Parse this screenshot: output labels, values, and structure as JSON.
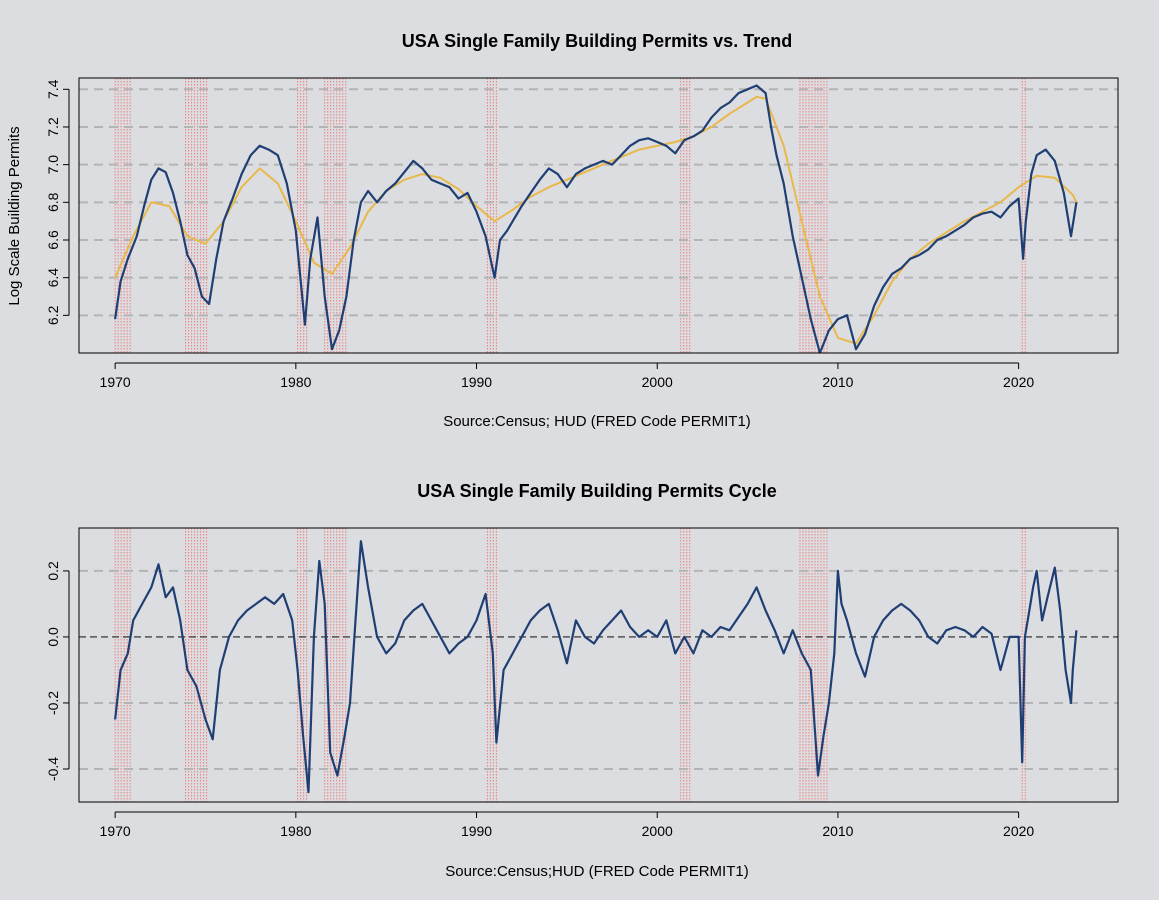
{
  "colors": {
    "background": "#dcdde0",
    "series": "#1f3f74",
    "trend": "#e9b84a",
    "recession": "#ec7f7f",
    "grid": "#b4b4b4",
    "zero_line": "#222222"
  },
  "chart_data": [
    {
      "type": "line",
      "title": "USA Single Family Building Permits vs. Trend",
      "xlabel": "Source:Census; HUD (FRED Code PERMIT1)",
      "ylabel": "Log Scale Building Permits",
      "xlim": [
        1968,
        2025.5
      ],
      "ylim": [
        6.0,
        7.46
      ],
      "x_ticks": [
        1970,
        1980,
        1990,
        2000,
        2010,
        2020
      ],
      "y_ticks": [
        6.2,
        6.4,
        6.6,
        6.8,
        7.0,
        7.2,
        7.4
      ],
      "y_gridlines": [
        6.2,
        6.4,
        6.6,
        6.8,
        7.0,
        7.2,
        7.4
      ],
      "grid": "dashed horizontal",
      "recessions": [
        [
          1970.0,
          1970.9
        ],
        [
          1973.9,
          1975.2
        ],
        [
          1980.1,
          1980.6
        ],
        [
          1981.6,
          1982.9
        ],
        [
          1990.6,
          1991.2
        ],
        [
          2001.3,
          2001.9
        ],
        [
          2007.9,
          2009.5
        ],
        [
          2020.2,
          2020.4
        ]
      ],
      "series": [
        {
          "x": [
            1970.0,
            1970.3,
            1970.7,
            1971.2,
            1971.6,
            1972.0,
            1972.4,
            1972.8,
            1973.2,
            1973.6,
            1974.0,
            1974.4,
            1974.8,
            1975.2,
            1975.6,
            1976.0,
            1976.5,
            1977.0,
            1977.5,
            1978.0,
            1978.5,
            1979.0,
            1979.5,
            1980.0,
            1980.3,
            1980.5,
            1980.8,
            1981.2,
            1981.6,
            1982.0,
            1982.4,
            1982.8,
            1983.2,
            1983.6,
            1984.0,
            1984.5,
            1985.0,
            1985.5,
            1986.0,
            1986.5,
            1987.0,
            1987.5,
            1988.0,
            1988.5,
            1989.0,
            1989.5,
            1990.0,
            1990.5,
            1991.0,
            1991.3,
            1991.7,
            1992.0,
            1992.5,
            1993.0,
            1993.5,
            1994.0,
            1994.5,
            1995.0,
            1995.5,
            1996.0,
            1996.5,
            1997.0,
            1997.5,
            1998.0,
            1998.5,
            1999.0,
            1999.5,
            2000.0,
            2000.5,
            2001.0,
            2001.5,
            2002.0,
            2002.5,
            2003.0,
            2003.5,
            2004.0,
            2004.5,
            2005.0,
            2005.5,
            2006.0,
            2006.3,
            2006.6,
            2007.0,
            2007.5,
            2008.0,
            2008.5,
            2009.0,
            2009.5,
            2010.0,
            2010.5,
            2011.0,
            2011.5,
            2012.0,
            2012.5,
            2013.0,
            2013.5,
            2014.0,
            2014.5,
            2015.0,
            2015.5,
            2016.0,
            2016.5,
            2017.0,
            2017.5,
            2018.0,
            2018.5,
            2019.0,
            2019.5,
            2020.0,
            2020.25,
            2020.4,
            2020.7,
            2021.0,
            2021.5,
            2022.0,
            2022.5,
            2022.9,
            2023.2
          ],
          "values": [
            6.18,
            6.38,
            6.5,
            6.62,
            6.78,
            6.92,
            6.98,
            6.96,
            6.85,
            6.7,
            6.52,
            6.45,
            6.3,
            6.26,
            6.5,
            6.7,
            6.82,
            6.95,
            7.05,
            7.1,
            7.08,
            7.05,
            6.9,
            6.65,
            6.35,
            6.15,
            6.5,
            6.72,
            6.3,
            6.02,
            6.12,
            6.3,
            6.6,
            6.8,
            6.86,
            6.8,
            6.86,
            6.9,
            6.96,
            7.02,
            6.98,
            6.92,
            6.9,
            6.88,
            6.82,
            6.85,
            6.75,
            6.62,
            6.4,
            6.6,
            6.65,
            6.7,
            6.78,
            6.85,
            6.92,
            6.98,
            6.95,
            6.88,
            6.95,
            6.98,
            7.0,
            7.02,
            7.0,
            7.05,
            7.1,
            7.13,
            7.14,
            7.12,
            7.1,
            7.06,
            7.13,
            7.15,
            7.18,
            7.25,
            7.3,
            7.33,
            7.38,
            7.4,
            7.42,
            7.38,
            7.2,
            7.05,
            6.9,
            6.62,
            6.4,
            6.18,
            6.0,
            6.12,
            6.18,
            6.2,
            6.02,
            6.1,
            6.25,
            6.35,
            6.42,
            6.45,
            6.5,
            6.52,
            6.55,
            6.6,
            6.62,
            6.65,
            6.68,
            6.72,
            6.74,
            6.75,
            6.72,
            6.78,
            6.82,
            6.5,
            6.7,
            6.95,
            7.05,
            7.08,
            7.02,
            6.85,
            6.62,
            6.8
          ]
        },
        {
          "name": "Trend",
          "x": [
            1970.0,
            1971.0,
            1972.0,
            1973.0,
            1974.0,
            1975.0,
            1976.0,
            1977.0,
            1978.0,
            1979.0,
            1980.0,
            1981.0,
            1982.0,
            1983.0,
            1984.0,
            1985.0,
            1986.0,
            1987.0,
            1988.0,
            1989.0,
            1990.0,
            1991.0,
            1992.0,
            1993.0,
            1994.0,
            1995.0,
            1996.0,
            1997.0,
            1998.0,
            1999.0,
            2000.0,
            2001.0,
            2002.0,
            2003.0,
            2004.0,
            2005.0,
            2005.5,
            2006.0,
            2007.0,
            2008.0,
            2009.0,
            2010.0,
            2011.0,
            2012.0,
            2013.0,
            2014.0,
            2015.0,
            2016.0,
            2017.0,
            2018.0,
            2019.0,
            2020.0,
            2021.0,
            2022.0,
            2023.0,
            2023.2
          ],
          "values": [
            6.4,
            6.62,
            6.8,
            6.78,
            6.62,
            6.58,
            6.7,
            6.88,
            6.98,
            6.9,
            6.7,
            6.48,
            6.42,
            6.56,
            6.75,
            6.86,
            6.92,
            6.95,
            6.93,
            6.87,
            6.78,
            6.7,
            6.76,
            6.83,
            6.88,
            6.92,
            6.96,
            7.0,
            7.04,
            7.08,
            7.1,
            7.12,
            7.15,
            7.2,
            7.27,
            7.33,
            7.36,
            7.35,
            7.1,
            6.7,
            6.3,
            6.08,
            6.05,
            6.2,
            6.38,
            6.5,
            6.58,
            6.64,
            6.7,
            6.75,
            6.8,
            6.88,
            6.94,
            6.93,
            6.84,
            6.8
          ]
        }
      ]
    },
    {
      "type": "line",
      "title": "USA Single Family Building Permits Cycle",
      "xlabel": "Source:Census;HUD (FRED Code PERMIT1)",
      "ylabel": "",
      "xlim": [
        1968,
        2025.5
      ],
      "ylim": [
        -0.5,
        0.33
      ],
      "x_ticks": [
        1970,
        1980,
        1990,
        2000,
        2010,
        2020
      ],
      "y_ticks": [
        -0.4,
        -0.2,
        0.0,
        0.2
      ],
      "y_tick_labels": [
        "-0.4",
        "-0.2",
        "0.0",
        "0.2"
      ],
      "y_gridlines": [
        -0.4,
        -0.2,
        0.2
      ],
      "zero_line": 0.0,
      "grid": "dashed horizontal",
      "recessions": [
        [
          1970.0,
          1970.9
        ],
        [
          1973.9,
          1975.2
        ],
        [
          1980.1,
          1980.6
        ],
        [
          1981.6,
          1982.9
        ],
        [
          1990.6,
          1991.2
        ],
        [
          2001.3,
          2001.9
        ],
        [
          2007.9,
          2009.5
        ],
        [
          2020.2,
          2020.4
        ]
      ],
      "series": [
        {
          "x": [
            1970.0,
            1970.3,
            1970.7,
            1971.0,
            1971.5,
            1972.0,
            1972.4,
            1972.8,
            1973.2,
            1973.6,
            1974.0,
            1974.5,
            1975.0,
            1975.4,
            1975.8,
            1976.3,
            1976.8,
            1977.3,
            1977.8,
            1978.3,
            1978.8,
            1979.3,
            1979.8,
            1980.1,
            1980.4,
            1980.7,
            1981.0,
            1981.3,
            1981.6,
            1981.9,
            1982.3,
            1982.7,
            1983.0,
            1983.3,
            1983.6,
            1984.0,
            1984.5,
            1985.0,
            1985.5,
            1986.0,
            1986.5,
            1987.0,
            1987.5,
            1988.0,
            1988.5,
            1989.0,
            1989.5,
            1990.0,
            1990.5,
            1990.9,
            1991.1,
            1991.5,
            1992.0,
            1992.5,
            1993.0,
            1993.5,
            1994.0,
            1994.5,
            1995.0,
            1995.5,
            1996.0,
            1996.5,
            1997.0,
            1997.5,
            1998.0,
            1998.5,
            1999.0,
            1999.5,
            2000.0,
            2000.5,
            2001.0,
            2001.5,
            2002.0,
            2002.5,
            2003.0,
            2003.5,
            2004.0,
            2004.5,
            2005.0,
            2005.5,
            2006.0,
            2006.5,
            2007.0,
            2007.5,
            2008.0,
            2008.5,
            2008.9,
            2009.2,
            2009.5,
            2009.8,
            2010.0,
            2010.2,
            2010.5,
            2011.0,
            2011.5,
            2012.0,
            2012.5,
            2013.0,
            2013.5,
            2014.0,
            2014.5,
            2015.0,
            2015.5,
            2016.0,
            2016.5,
            2017.0,
            2017.5,
            2018.0,
            2018.5,
            2019.0,
            2019.5,
            2020.0,
            2020.2,
            2020.35,
            2020.5,
            2020.8,
            2021.0,
            2021.3,
            2021.6,
            2022.0,
            2022.3,
            2022.6,
            2022.9,
            2023.0,
            2023.2
          ],
          "values": [
            -0.25,
            -0.1,
            -0.05,
            0.05,
            0.1,
            0.15,
            0.22,
            0.12,
            0.15,
            0.05,
            -0.1,
            -0.15,
            -0.25,
            -0.31,
            -0.1,
            0.0,
            0.05,
            0.08,
            0.1,
            0.12,
            0.1,
            0.13,
            0.05,
            -0.1,
            -0.3,
            -0.47,
            0.0,
            0.23,
            0.1,
            -0.35,
            -0.42,
            -0.3,
            -0.2,
            0.05,
            0.29,
            0.15,
            0.0,
            -0.05,
            -0.02,
            0.05,
            0.08,
            0.1,
            0.05,
            0.0,
            -0.05,
            -0.02,
            0.0,
            0.05,
            0.13,
            -0.05,
            -0.32,
            -0.1,
            -0.05,
            0.0,
            0.05,
            0.08,
            0.1,
            0.02,
            -0.08,
            0.05,
            0.0,
            -0.02,
            0.02,
            0.05,
            0.08,
            0.03,
            0.0,
            0.02,
            0.0,
            0.05,
            -0.05,
            0.0,
            -0.05,
            0.02,
            0.0,
            0.03,
            0.02,
            0.06,
            0.1,
            0.15,
            0.08,
            0.02,
            -0.05,
            0.02,
            -0.05,
            -0.1,
            -0.42,
            -0.3,
            -0.2,
            -0.05,
            0.2,
            0.1,
            0.05,
            -0.05,
            -0.12,
            0.0,
            0.05,
            0.08,
            0.1,
            0.08,
            0.05,
            0.0,
            -0.02,
            0.02,
            0.03,
            0.02,
            0.0,
            0.03,
            0.01,
            -0.1,
            0.0,
            0.0,
            -0.38,
            0.0,
            0.05,
            0.15,
            0.2,
            0.05,
            0.12,
            0.21,
            0.08,
            -0.1,
            -0.2,
            -0.1,
            0.02
          ]
        }
      ]
    }
  ]
}
